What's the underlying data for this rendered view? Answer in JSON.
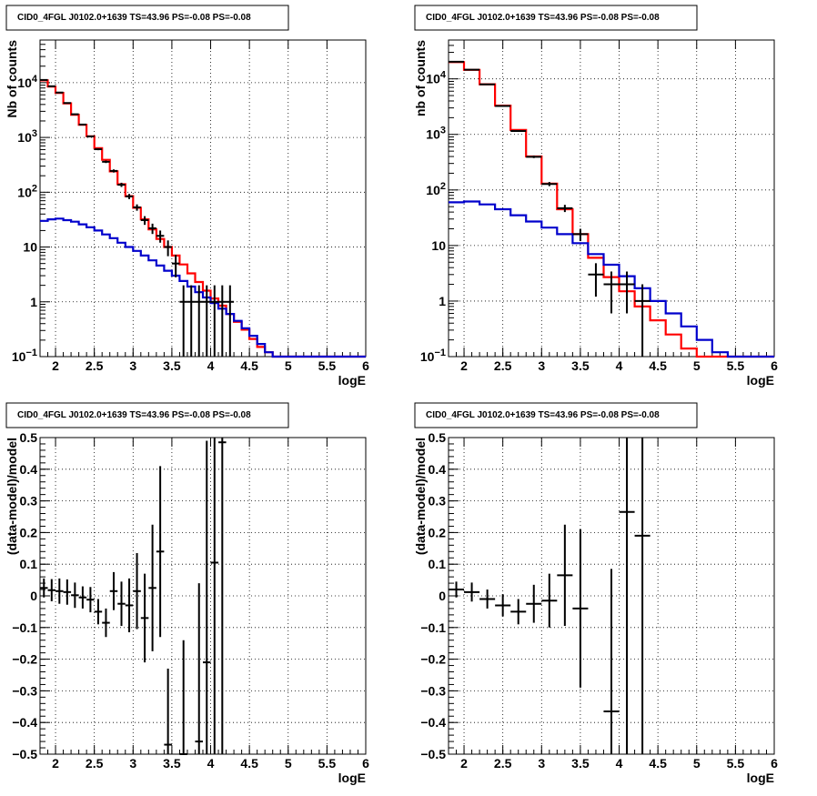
{
  "chart_data": [
    {
      "type": "line",
      "title": "CID0_4FGL J0102.0+1639 TS=43.96 PS=-0.08 PS=-0.08",
      "xlabel": "logE",
      "ylabel": "Nb of counts",
      "xlim": [
        1.8,
        6.0
      ],
      "ylim": [
        0.1,
        60000
      ],
      "yscale": "log",
      "grid": true,
      "bin_width": 0.1,
      "x_ticks": [
        "2",
        "2.5",
        "3",
        "3.5",
        "4",
        "4.5",
        "5",
        "5.5",
        "6"
      ],
      "y_ticks": [
        "10^-1",
        "1",
        "10",
        "10^2",
        "10^3",
        "10^4"
      ],
      "series": [
        {
          "color": "#ff0000",
          "kind": "step",
          "x": [
            1.8,
            1.9,
            2.0,
            2.1,
            2.2,
            2.3,
            2.4,
            2.5,
            2.6,
            2.7,
            2.8,
            2.9,
            3.0,
            3.1,
            3.2,
            3.3,
            3.4,
            3.5,
            3.6,
            3.7,
            3.8,
            3.9,
            4.0,
            4.1,
            4.2,
            4.3,
            4.4,
            4.5,
            4.6,
            4.7,
            4.8,
            4.9,
            5.0,
            5.1,
            5.2,
            5.3,
            5.4,
            5.5,
            5.6,
            5.7,
            5.8,
            5.9
          ],
          "y": [
            11000,
            8500,
            6500,
            4200,
            2600,
            1700,
            1050,
            640,
            390,
            240,
            140,
            85,
            52,
            32,
            21,
            14,
            10,
            7,
            4.8,
            3.3,
            2.3,
            1.6,
            1.15,
            0.85,
            0.6,
            0.43,
            0.31,
            0.21,
            0.15,
            0.12,
            0.1,
            0.1,
            0.1,
            0.1,
            0.1,
            0.1,
            0.1,
            0.1,
            0.1,
            0.1,
            0.1,
            0.1
          ]
        },
        {
          "color": "#0000cc",
          "kind": "step",
          "x": [
            1.8,
            1.9,
            2.0,
            2.1,
            2.2,
            2.3,
            2.4,
            2.5,
            2.6,
            2.7,
            2.8,
            2.9,
            3.0,
            3.1,
            3.2,
            3.3,
            3.4,
            3.5,
            3.6,
            3.7,
            3.8,
            3.9,
            4.0,
            4.1,
            4.2,
            4.3,
            4.4,
            4.5,
            4.6,
            4.7,
            4.8,
            4.9,
            5.0,
            5.1,
            5.2,
            5.3,
            5.4,
            5.5,
            5.6,
            5.7,
            5.8,
            5.9
          ],
          "y": [
            30,
            32,
            33,
            31,
            29,
            26,
            23,
            20,
            17,
            14.5,
            12,
            10,
            8.5,
            7,
            5.7,
            4.6,
            3.7,
            3,
            2.4,
            1.9,
            1.5,
            1.2,
            0.95,
            0.75,
            0.6,
            0.45,
            0.33,
            0.24,
            0.17,
            0.12,
            0.1,
            0.1,
            0.1,
            0.1,
            0.1,
            0.1,
            0.1,
            0.1,
            0.1,
            0.1,
            0.1,
            0.1
          ]
        },
        {
          "color": "#000000",
          "kind": "points",
          "x": [
            1.85,
            1.95,
            2.05,
            2.15,
            2.25,
            2.35,
            2.45,
            2.55,
            2.65,
            2.75,
            2.85,
            2.95,
            3.05,
            3.15,
            3.25,
            3.35,
            3.45,
            3.55,
            3.65,
            3.75,
            3.85,
            3.95,
            4.05,
            4.15,
            4.25
          ],
          "y": [
            11200,
            8600,
            6600,
            4250,
            2650,
            1720,
            1045,
            610,
            360,
            245,
            137,
            84,
            53,
            31,
            22,
            16,
            10,
            5,
            1,
            1,
            1,
            1,
            1,
            1,
            1
          ],
          "yerr": [
            105,
            93,
            81,
            65,
            51,
            41,
            32,
            25,
            19,
            16,
            12,
            9,
            7,
            5.6,
            4.7,
            4,
            3.2,
            2.2,
            1,
            1,
            1,
            1,
            1,
            1,
            1
          ]
        }
      ]
    },
    {
      "type": "line",
      "title": "CID0_4FGL J0102.0+1639 TS=43.96 PS=-0.08 PS=-0.08",
      "xlabel": "logE",
      "ylabel": "nb of counts",
      "xlim": [
        1.8,
        6.0
      ],
      "ylim": [
        0.1,
        50000
      ],
      "yscale": "log",
      "grid": true,
      "bin_width": 0.2,
      "x_ticks": [
        "2",
        "2.5",
        "3",
        "3.5",
        "4",
        "4.5",
        "5",
        "5.5",
        "6"
      ],
      "y_ticks": [
        "10^-1",
        "1",
        "10",
        "10^2",
        "10^3",
        "10^4"
      ],
      "series": [
        {
          "color": "#ff0000",
          "kind": "step",
          "x": [
            1.8,
            2.0,
            2.2,
            2.4,
            2.6,
            2.8,
            3.0,
            3.2,
            3.4,
            3.6,
            3.8,
            4.0,
            4.2,
            4.4,
            4.6,
            4.8,
            5.0,
            5.2,
            5.4,
            5.6,
            5.8
          ],
          "y": [
            20000,
            14500,
            8000,
            3300,
            1200,
            400,
            130,
            45,
            16,
            6,
            2.7,
            1.5,
            0.8,
            0.45,
            0.25,
            0.14,
            0.1,
            0.1,
            0.1,
            0.1,
            0.1
          ]
        },
        {
          "color": "#0000cc",
          "kind": "step",
          "x": [
            1.8,
            2.0,
            2.2,
            2.4,
            2.6,
            2.8,
            3.0,
            3.2,
            3.4,
            3.6,
            3.8,
            4.0,
            4.2,
            4.4,
            4.6,
            4.8,
            5.0,
            5.2,
            5.4,
            5.6,
            5.8
          ],
          "y": [
            60,
            62,
            55,
            45,
            35,
            27,
            21,
            16,
            11,
            7,
            4.5,
            2.8,
            1.7,
            1,
            0.6,
            0.35,
            0.2,
            0.12,
            0.1,
            0.1,
            0.1
          ]
        },
        {
          "color": "#000000",
          "kind": "points",
          "x": [
            1.9,
            2.1,
            2.3,
            2.5,
            2.7,
            2.9,
            3.1,
            3.3,
            3.5,
            3.7,
            3.9,
            4.1,
            4.3
          ],
          "y": [
            20300,
            14600,
            7950,
            3250,
            1150,
            395,
            128,
            47,
            16,
            3,
            2,
            2,
            1
          ],
          "yerr": [
            142,
            121,
            89,
            57,
            34,
            20,
            11,
            7,
            4,
            1.8,
            1.4,
            1.4,
            1
          ]
        }
      ]
    },
    {
      "type": "scatter",
      "title": "CID0_4FGL J0102.0+1639 TS=43.96 PS=-0.08 PS=-0.08",
      "xlabel": "logE",
      "ylabel": "(data-model)/model",
      "xlim": [
        1.8,
        6.0
      ],
      "ylim": [
        -0.5,
        0.5
      ],
      "grid": true,
      "bin_width": 0.1,
      "x_ticks": [
        "2",
        "2.5",
        "3",
        "3.5",
        "4",
        "4.5",
        "5",
        "5.5",
        "6"
      ],
      "y_ticks": [
        "-0.5",
        "-0.4",
        "-0.3",
        "-0.2",
        "-0.1",
        "0",
        "0.1",
        "0.2",
        "0.3",
        "0.4",
        "0.5"
      ],
      "series": [
        {
          "color": "#000000",
          "kind": "points",
          "x": [
            1.85,
            1.95,
            2.05,
            2.15,
            2.25,
            2.35,
            2.45,
            2.55,
            2.65,
            2.75,
            2.85,
            2.95,
            3.05,
            3.15,
            3.25,
            3.35,
            3.45,
            3.65,
            3.85,
            3.95,
            4.05,
            4.15
          ],
          "y": [
            0.025,
            0.018,
            0.015,
            0.012,
            0.002,
            -0.005,
            -0.012,
            -0.05,
            -0.085,
            0.015,
            -0.025,
            -0.03,
            0.015,
            -0.07,
            0.025,
            0.14,
            -0.47,
            -0.5,
            -0.46,
            -0.21,
            0.105,
            0.485
          ],
          "yerr": [
            0.03,
            0.035,
            0.04,
            0.04,
            0.04,
            0.035,
            0.04,
            0.04,
            0.045,
            0.06,
            0.07,
            0.085,
            0.12,
            0.14,
            0.2,
            0.27,
            0.24,
            0.36,
            0.5,
            0.7,
            1.0,
            1.2
          ]
        }
      ]
    },
    {
      "type": "scatter",
      "title": "CID0_4FGL J0102.0+1639 TS=43.96 PS=-0.08 PS=-0.08",
      "xlabel": "logE",
      "ylabel": "(data-model)/model",
      "xlim": [
        1.8,
        6.0
      ],
      "ylim": [
        -0.5,
        0.5
      ],
      "grid": true,
      "bin_width": 0.2,
      "x_ticks": [
        "2",
        "2.5",
        "3",
        "3.5",
        "4",
        "4.5",
        "5",
        "5.5",
        "6"
      ],
      "y_ticks": [
        "-0.5",
        "-0.4",
        "-0.3",
        "-0.2",
        "-0.1",
        "0",
        "0.1",
        "0.2",
        "0.3",
        "0.4",
        "0.5"
      ],
      "series": [
        {
          "color": "#000000",
          "kind": "points",
          "x": [
            1.9,
            2.1,
            2.3,
            2.5,
            2.7,
            2.9,
            3.1,
            3.3,
            3.5,
            3.9,
            4.1,
            4.3
          ],
          "y": [
            0.02,
            0.012,
            -0.01,
            -0.03,
            -0.05,
            -0.025,
            -0.015,
            0.065,
            -0.04,
            -0.365,
            0.265,
            0.19
          ],
          "yerr": [
            0.025,
            0.03,
            0.03,
            0.035,
            0.04,
            0.06,
            0.085,
            0.16,
            0.25,
            0.45,
            0.8,
            0.9
          ]
        }
      ]
    }
  ]
}
